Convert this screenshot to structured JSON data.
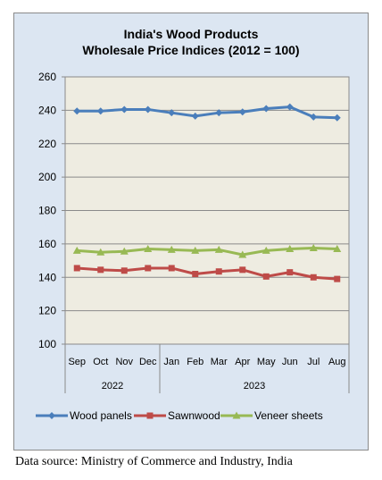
{
  "chart_data": {
    "type": "line",
    "title": "India's Wood Products",
    "subtitle": "Wholesale Price Indices (2012 = 100)",
    "categories": [
      "Sep",
      "Oct",
      "Nov",
      "Dec",
      "Jan",
      "Feb",
      "Mar",
      "Apr",
      "May",
      "Jun",
      "Jul",
      "Aug"
    ],
    "category_groups": [
      {
        "label": "2022",
        "count": 4
      },
      {
        "label": "2023",
        "count": 8
      }
    ],
    "ylim": [
      100,
      260
    ],
    "yticks": [
      100,
      120,
      140,
      160,
      180,
      200,
      220,
      240,
      260
    ],
    "grid": true,
    "legend_position": "bottom",
    "series": [
      {
        "name": "Wood panels",
        "color": "#4a7ebb",
        "marker": "diamond",
        "values": [
          239.5,
          239.5,
          240.5,
          240.5,
          238.5,
          236.5,
          238.5,
          239.0,
          241.0,
          242.0,
          236.0,
          235.5
        ]
      },
      {
        "name": "Sawnwood",
        "color": "#be4b48",
        "marker": "square",
        "values": [
          145.5,
          144.5,
          144.0,
          145.5,
          145.5,
          142.0,
          143.5,
          144.5,
          140.5,
          143.0,
          140.0,
          139.0
        ]
      },
      {
        "name": "Veneer sheets",
        "color": "#98b954",
        "marker": "triangle",
        "values": [
          156.0,
          155.0,
          155.5,
          157.0,
          156.5,
          156.0,
          156.5,
          153.5,
          156.0,
          157.0,
          157.5,
          157.0
        ]
      }
    ],
    "plot_background": "#eeece1",
    "chart_background": "#dce6f2"
  },
  "source_note": "Data source: Ministry of Commerce and Industry, India"
}
